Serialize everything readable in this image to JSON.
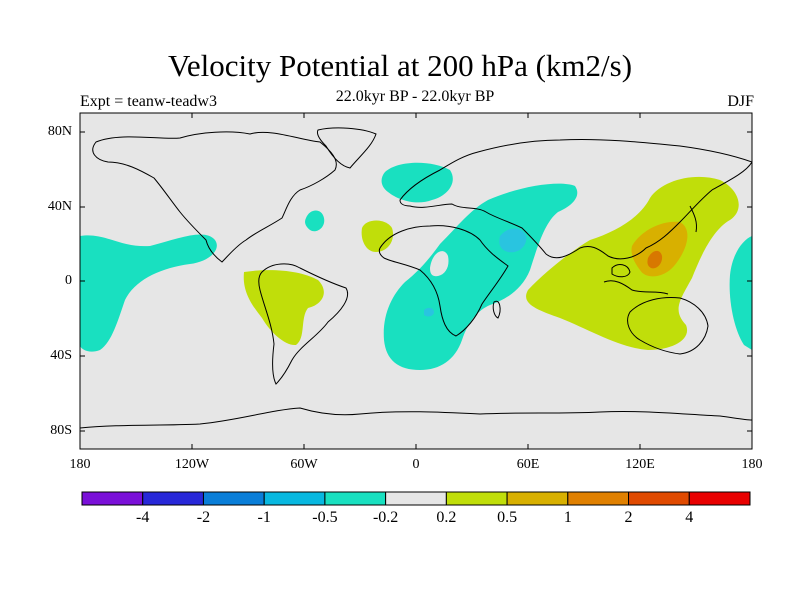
{
  "title": "Velocity Potential at 200 hPa (km2/s)",
  "subtitle": "22.0kyr BP - 22.0kyr BP",
  "experiment": "Expt = teanw-teadw3",
  "season": "DJF",
  "colors": {
    "background_field": "#e6e6e6",
    "negative_small": "#19e0c0",
    "negative_medium": "#29c4e0",
    "positive_small": "#c0de0a",
    "positive_medium": "#d8b000",
    "positive_large": "#d87800",
    "coast": "#000000"
  },
  "map": {
    "projection": "cylindrical-equidistant",
    "lat_ticks": [
      "80N",
      "40N",
      "0",
      "40S",
      "80S"
    ],
    "lon_ticks": [
      "180",
      "120W",
      "60W",
      "0",
      "60E",
      "120E",
      "180"
    ]
  },
  "colorbar": {
    "colors": [
      "#7a10d8",
      "#2828d8",
      "#0a7ed8",
      "#08b8e0",
      "#19e0c0",
      "#e6e6e6",
      "#c0de0a",
      "#d8b000",
      "#e08000",
      "#e04a00",
      "#e80000"
    ],
    "labels": [
      "-4",
      "-2",
      "-1",
      "-0.5",
      "-0.2",
      "0.2",
      "0.5",
      "1",
      "2",
      "4"
    ]
  }
}
